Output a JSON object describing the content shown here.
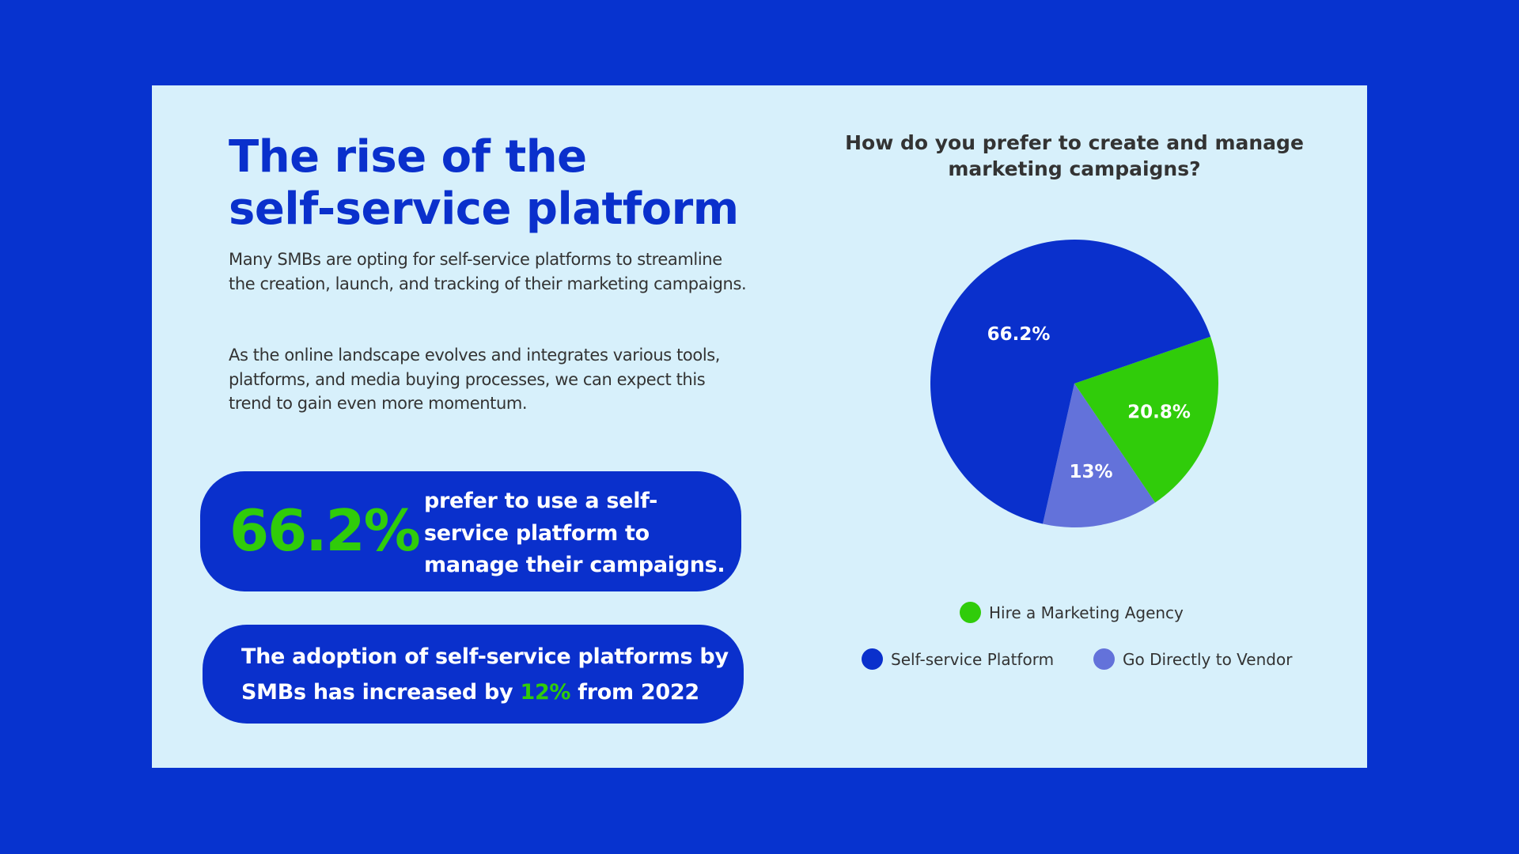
{
  "title_lines": [
    "The rise of the",
    "self-service platform"
  ],
  "paragraphs": [
    "Many SMBs are opting for self-service platforms to streamline the creation, launch, and tracking of their marketing campaigns.",
    "As the online landscape evolves and integrates various tools, platforms, and media buying processes, we can expect this trend to gain even more momentum."
  ],
  "stat_card": {
    "value": "66.2%",
    "text": "prefer to use a self-service platform to manage their campaigns."
  },
  "growth_card": {
    "text_before": "The adoption of self-service platforms by SMBs has increased by ",
    "highlight": "12%",
    "text_after": " from 2022"
  },
  "colors": {
    "background": "#0733cf",
    "panel": "#d7f0fb",
    "primary": "#0a30cc",
    "accent": "#30cc0a",
    "secondary": "#6372da"
  },
  "chart_data": {
    "type": "pie",
    "title": "How do you prefer to create and manage marketing campaigns?",
    "slices": [
      {
        "label": "Hire a Marketing Agency",
        "value": 20.8,
        "display": "20.8%",
        "color": "#30cc0a"
      },
      {
        "label": "Go Directly to Vendor",
        "value": 13,
        "display": "13%",
        "color": "#6372da"
      },
      {
        "label": "Self-service Platform",
        "value": 66.2,
        "display": "66.2%",
        "color": "#0a30cc"
      }
    ],
    "legend_position": "bottom"
  }
}
